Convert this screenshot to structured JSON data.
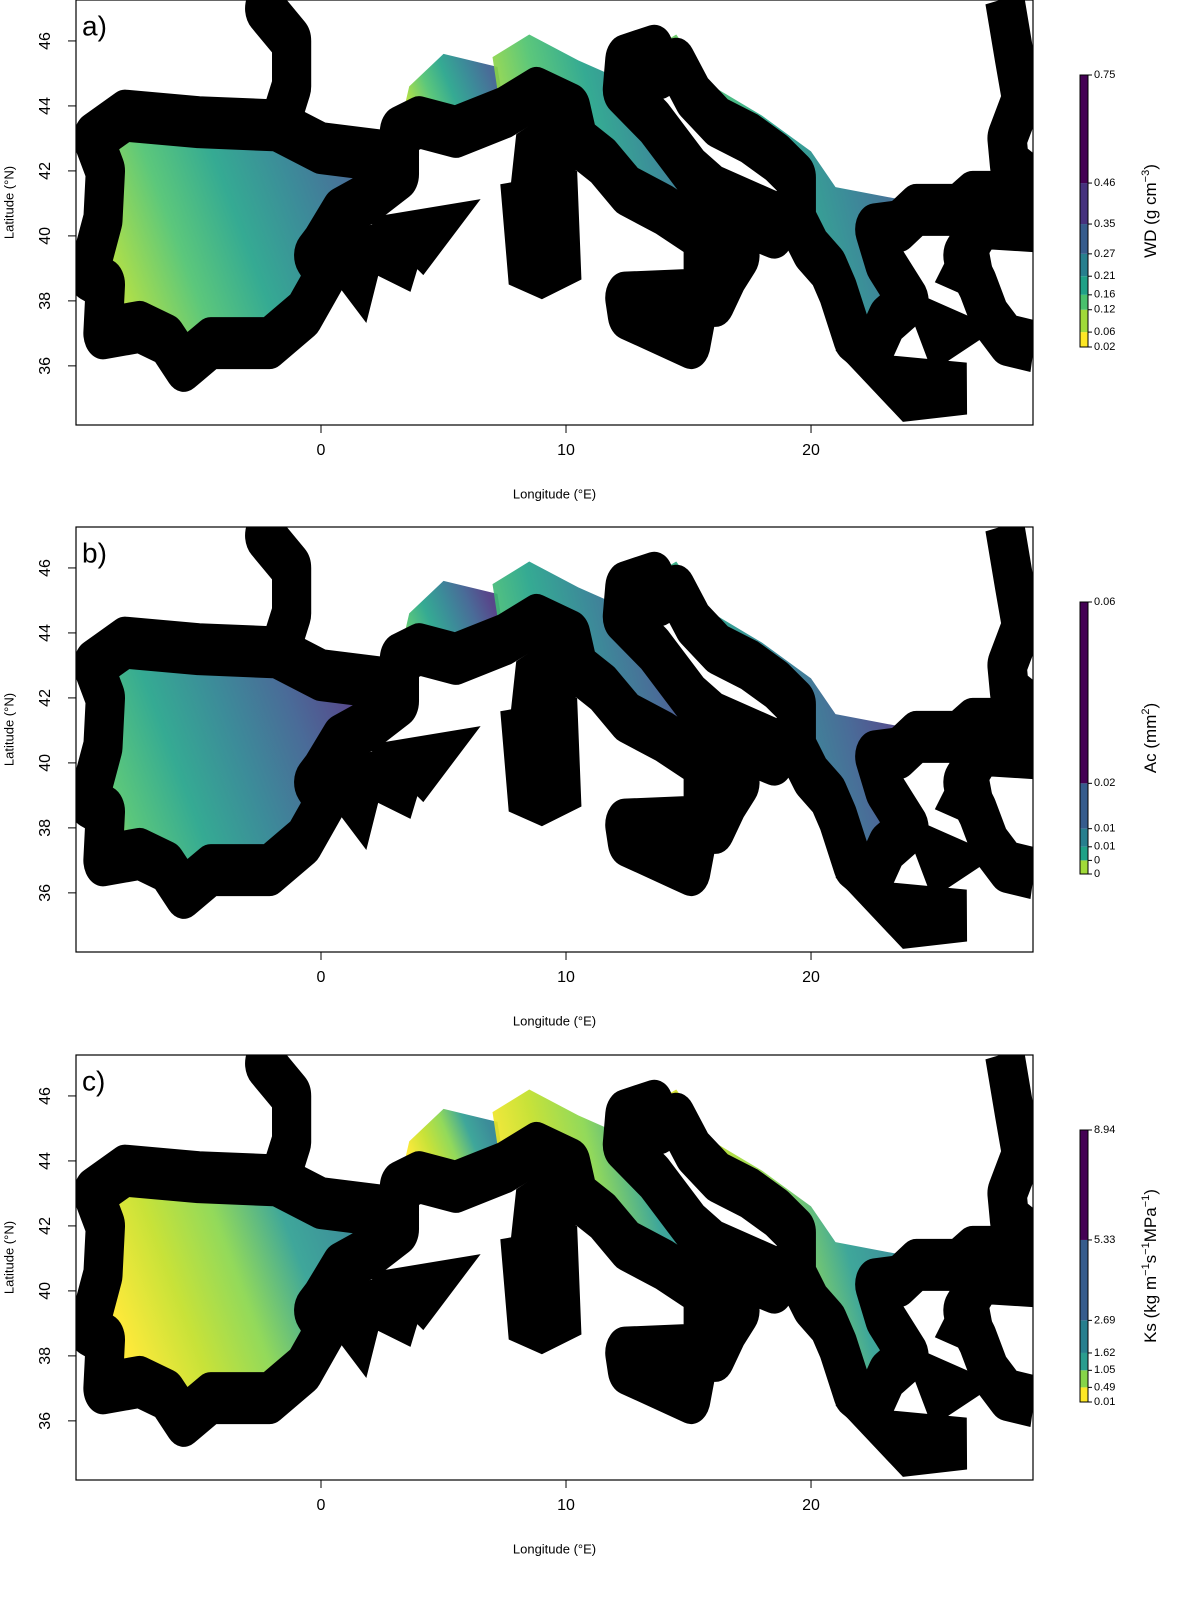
{
  "chart_data": [
    {
      "type": "map",
      "panel_label": "a)",
      "xlabel": "Longitude (°E)",
      "ylabel": "Latitude (°N)",
      "xlim": [
        -10,
        29.06
      ],
      "ylim": [
        34.18,
        47.26
      ],
      "xticks": [
        0,
        10,
        20
      ],
      "yticks": [
        36,
        38,
        40,
        42,
        44,
        46
      ],
      "fill_colors": [
        "#fde725",
        "#a0da39",
        "#4ac16d",
        "#1fa187",
        "#277f8e",
        "#365c8d"
      ],
      "colorbar": {
        "title": [
          "WD (g cm",
          "−3",
          ")"
        ],
        "lim": [
          0.02,
          0.75
        ],
        "ticks": [
          0.02,
          0.06,
          0.12,
          0.16,
          0.21,
          0.27,
          0.35,
          0.46,
          0.75
        ],
        "colors": [
          "#fde725",
          "#a0da39",
          "#4ac16d",
          "#1fa187",
          "#277f8e",
          "#365c8d",
          "#46327e",
          "#440154"
        ]
      }
    },
    {
      "type": "map",
      "panel_label": "b)",
      "xlabel": "Longitude (°E)",
      "ylabel": "Latitude (°N)",
      "xlim": [
        -10,
        29.06
      ],
      "ylim": [
        34.18,
        47.26
      ],
      "xticks": [
        0,
        10,
        20
      ],
      "yticks": [
        36,
        38,
        40,
        42,
        44,
        46
      ],
      "fill_colors": [
        "#fde725",
        "#4ac16d",
        "#1fa187",
        "#277f8e",
        "#365c8d",
        "#46327e"
      ],
      "colorbar": {
        "title": [
          "Ac (mm",
          "2",
          ")"
        ],
        "lim": [
          0,
          0.06
        ],
        "ticks": [
          0,
          {
            "value": 0.003,
            "label": "0"
          },
          {
            "value": 0.006,
            "label": "0.01"
          },
          0.01,
          0.02,
          0.06
        ],
        "colors": [
          "#a0da39",
          "#1fa187",
          "#277f8e",
          "#365c8d",
          "#440154"
        ]
      }
    },
    {
      "type": "map",
      "panel_label": "c)",
      "xlabel": "Longitude (°E)",
      "ylabel": "Latitude (°N)",
      "xlim": [
        -10,
        29.06
      ],
      "ylim": [
        34.18,
        47.26
      ],
      "xticks": [
        0,
        10,
        20
      ],
      "yticks": [
        36,
        38,
        40,
        42,
        44,
        46
      ],
      "fill_colors": [
        "#fde725",
        "#fde725",
        "#c2df23",
        "#86d549",
        "#2a9d8f",
        "#277f8e"
      ],
      "colorbar": {
        "title": [
          "Ks (kg m",
          "−1",
          "s",
          "−1",
          "MPa",
          "−1",
          ")"
        ],
        "lim": [
          0.01,
          8.94
        ],
        "ticks": [
          0.01,
          0.49,
          1.05,
          1.62,
          2.69,
          5.33,
          8.94
        ],
        "colors": [
          "#fde725",
          "#86d549",
          "#2a9d8f",
          "#277f8e",
          "#365c8d",
          "#440154"
        ]
      }
    }
  ]
}
